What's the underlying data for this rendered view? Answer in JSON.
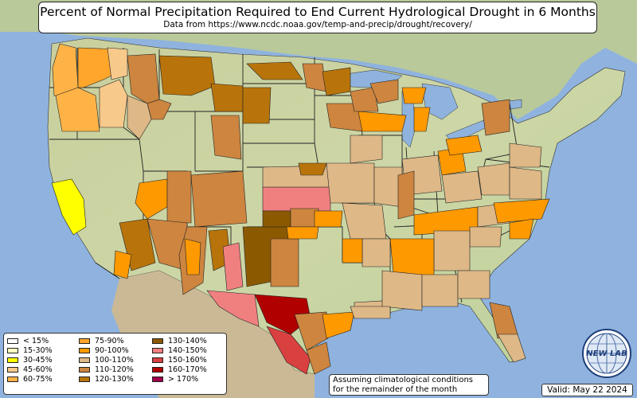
{
  "title": "Percent of Normal Precipitation Required to End Current Hydrological Drought in 6 Months",
  "subtitle": "Data from https://www.ncdc.noaa.gov/temp-and-precip/drought/recovery/",
  "legend": {
    "items": [
      {
        "label": "< 15%",
        "color": "#ffffff"
      },
      {
        "label": "15-30%",
        "color": "#ffffc0"
      },
      {
        "label": "30-45%",
        "color": "#ffff00"
      },
      {
        "label": "45-60%",
        "color": "#f7c98b"
      },
      {
        "label": "60-75%",
        "color": "#ffb347"
      },
      {
        "label": "75-90%",
        "color": "#ffa62b"
      },
      {
        "label": "90-100%",
        "color": "#ff9900"
      },
      {
        "label": "100-110%",
        "color": "#deb887"
      },
      {
        "label": "110-120%",
        "color": "#cd853f"
      },
      {
        "label": "120-130%",
        "color": "#b8740a"
      },
      {
        "label": "130-140%",
        "color": "#8b5a00"
      },
      {
        "label": "140-150%",
        "color": "#f08080"
      },
      {
        "label": "150-160%",
        "color": "#d94040"
      },
      {
        "label": "160-170%",
        "color": "#b00000"
      },
      {
        "label": "> 170%",
        "color": "#a0004a"
      }
    ]
  },
  "note": {
    "line1": "Assuming climatological conditions",
    "line2": "for the remainder of the month"
  },
  "valid": "Valid: May 22 2024",
  "logo_text": "NEW LAB",
  "colors": {
    "ocean": "#8fb3de",
    "land": "#c9d3a8",
    "border": "#1a1a1a"
  }
}
